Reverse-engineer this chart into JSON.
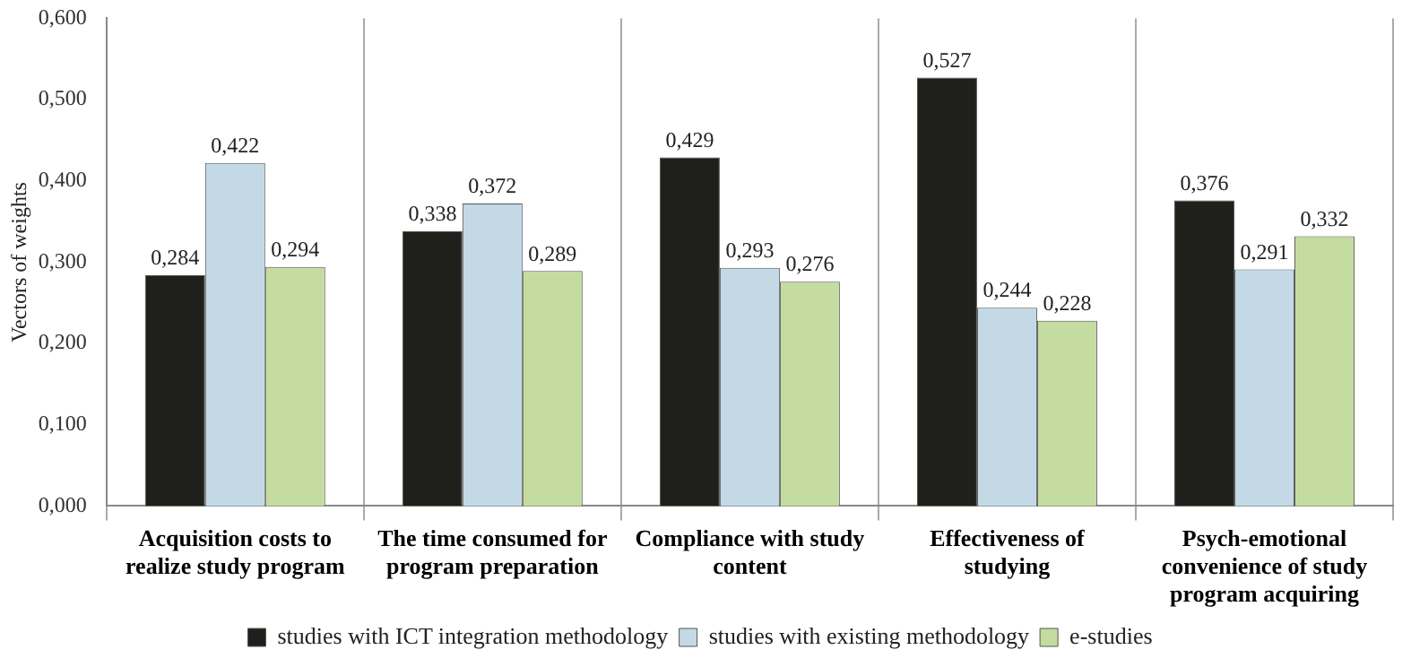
{
  "chart_data": {
    "type": "bar",
    "ylabel": "Vectors of weights",
    "categories": [
      "Acquisition costs to realize study program",
      "The time consumed for program preparation",
      "Compliance with study content",
      "Effectiveness of studying",
      "Psych-emotional convenience of study program acquiring"
    ],
    "series": [
      {
        "name": "studies with ICT integration methodology",
        "color": "#1f1f1b",
        "values": [
          0.284,
          0.338,
          0.429,
          0.527,
          0.376
        ],
        "value_labels": [
          "0,284",
          "0,338",
          "0,429",
          "0,527",
          "0,376"
        ]
      },
      {
        "name": "studies with existing methodology",
        "color": "#c4d9e6",
        "values": [
          0.422,
          0.372,
          0.293,
          0.244,
          0.291
        ],
        "value_labels": [
          "0,422",
          "0,372",
          "0,293",
          "0,244",
          "0,291"
        ]
      },
      {
        "name": "e-studies",
        "color": "#c4dca0",
        "values": [
          0.294,
          0.289,
          0.276,
          0.228,
          0.332
        ],
        "value_labels": [
          "0,294",
          "0,289",
          "0,276",
          "0,228",
          "0,332"
        ]
      }
    ],
    "ylim": [
      0,
      0.6
    ],
    "yticks": [
      {
        "value": 0,
        "label": "0,000"
      },
      {
        "value": 0.1,
        "label": "0,100"
      },
      {
        "value": 0.2,
        "label": "0,200"
      },
      {
        "value": 0.3,
        "label": "0,300"
      },
      {
        "value": 0.4,
        "label": "0,400"
      },
      {
        "value": 0.5,
        "label": "0,500"
      },
      {
        "value": 0.6,
        "label": "0,600"
      }
    ],
    "grid": "x",
    "legend": "bottom"
  }
}
